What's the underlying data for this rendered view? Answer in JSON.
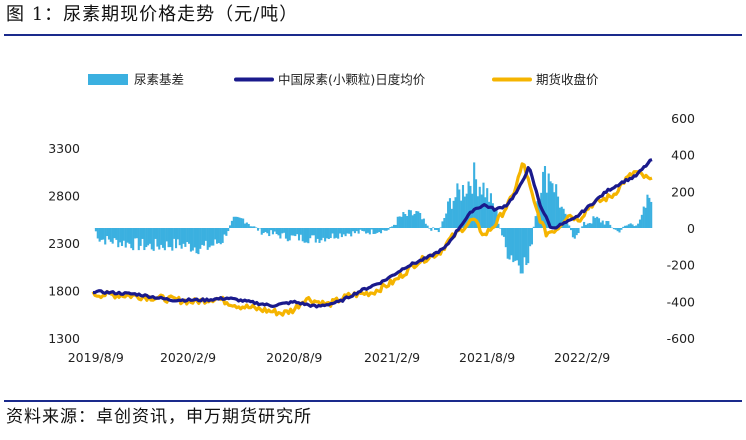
{
  "header": {
    "title": "图 1：尿素期现价格走势（元/吨）"
  },
  "footer": {
    "source": "资料来源：卓创资讯，申万期货研究所"
  },
  "colors": {
    "basis": "#3bb0e0",
    "spot": "#1a1a8c",
    "futures": "#f5b400",
    "rule": "#1a2a8c"
  },
  "chart_data": {
    "type": "line",
    "title": "尿素期现价格走势（元/吨）",
    "legend_position": "top",
    "legend": [
      "尿素基差",
      "中国尿素(小颗粒)日度均价",
      "期货收盘价"
    ],
    "x_ticks": [
      "2019/8/9",
      "2020/2/9",
      "2020/8/9",
      "2021/2/9",
      "2021/8/9",
      "2022/2/9"
    ],
    "y_left": {
      "ticks": [
        1300,
        1800,
        2300,
        2800,
        3300
      ],
      "range": [
        1300,
        3300
      ]
    },
    "y_right": {
      "ticks": [
        -600,
        -400,
        -200,
        0,
        200,
        400,
        600
      ],
      "range": [
        -600,
        600
      ]
    },
    "series": [
      {
        "name": "尿素基差",
        "type": "bar",
        "axis": "right"
      },
      {
        "name": "中国尿素(小颗粒)日度均价",
        "type": "line",
        "axis": "left"
      },
      {
        "name": "期货收盘价",
        "type": "line",
        "axis": "left"
      }
    ]
  }
}
